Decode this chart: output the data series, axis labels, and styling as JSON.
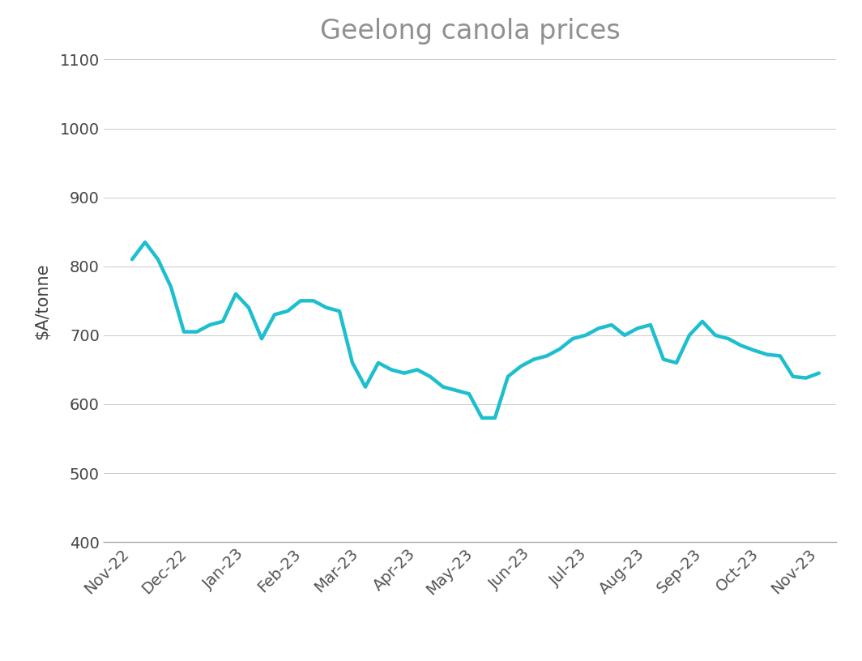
{
  "title": "Geelong canola prices",
  "ylabel": "$A/tonne",
  "ylim": [
    400,
    1100
  ],
  "yticks": [
    400,
    500,
    600,
    700,
    800,
    900,
    1000,
    1100
  ],
  "line_color": "#1DBFCF",
  "line_width": 3.2,
  "background_color": "#ffffff",
  "title_color": "#909090",
  "title_fontsize": 24,
  "ylabel_fontsize": 15,
  "tick_label_fontsize": 14,
  "xlabel_labels": [
    "Nov-22",
    "Dec-22",
    "Jan-23",
    "Feb-23",
    "Mar-23",
    "Apr-23",
    "May-23",
    "Jun-23",
    "Jul-23",
    "Aug-23",
    "Sep-23",
    "Oct-23",
    "Nov-23"
  ],
  "values": [
    810,
    835,
    810,
    770,
    705,
    705,
    715,
    720,
    760,
    740,
    695,
    730,
    735,
    750,
    750,
    740,
    735,
    660,
    625,
    660,
    650,
    645,
    650,
    640,
    625,
    620,
    615,
    580,
    580,
    640,
    655,
    665,
    670,
    680,
    695,
    700,
    710,
    715,
    700,
    710,
    715,
    665,
    660,
    700,
    720,
    700,
    695,
    685,
    678,
    672,
    670,
    640,
    638,
    645
  ]
}
